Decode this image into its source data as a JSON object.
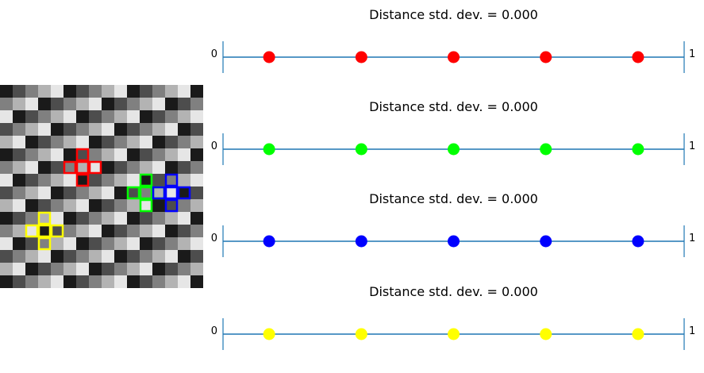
{
  "chart_data": {
    "type": "composite",
    "grid_image": {
      "type": "heatmap",
      "rows": 16,
      "cols": 16,
      "colormap": "gray",
      "levels": [
        0.1,
        0.3,
        0.5,
        0.7,
        0.9
      ],
      "highlight_crosses": [
        {
          "name": "red",
          "color": "#ff0000",
          "center_col": 6,
          "center_row": 6
        },
        {
          "name": "green",
          "color": "#00ff00",
          "center_col": 11,
          "center_row": 8
        },
        {
          "name": "blue",
          "color": "#0000ff",
          "center_col": 13,
          "center_row": 8
        },
        {
          "name": "yellow",
          "color": "#ffff00",
          "center_col": 3,
          "center_row": 11
        }
      ]
    },
    "number_lines": [
      {
        "title": "Distance std. dev. = 0.000",
        "min_label": "0",
        "max_label": "1",
        "xlim": [
          0,
          1
        ],
        "color": "#ff0000",
        "points": [
          0.1,
          0.3,
          0.5,
          0.7,
          0.9
        ]
      },
      {
        "title": "Distance std. dev. = 0.000",
        "min_label": "0",
        "max_label": "1",
        "xlim": [
          0,
          1
        ],
        "color": "#00ff00",
        "points": [
          0.1,
          0.3,
          0.5,
          0.7,
          0.9
        ]
      },
      {
        "title": "Distance std. dev. = 0.000",
        "min_label": "0",
        "max_label": "1",
        "xlim": [
          0,
          1
        ],
        "color": "#0000ff",
        "points": [
          0.1,
          0.3,
          0.5,
          0.7,
          0.9
        ]
      },
      {
        "title": "Distance std. dev. = 0.000",
        "min_label": "0",
        "max_label": "1",
        "xlim": [
          0,
          1
        ],
        "color": "#ffff00",
        "points": [
          0.1,
          0.3,
          0.5,
          0.7,
          0.9
        ]
      }
    ],
    "axis_line_color": "#1f77b4"
  }
}
